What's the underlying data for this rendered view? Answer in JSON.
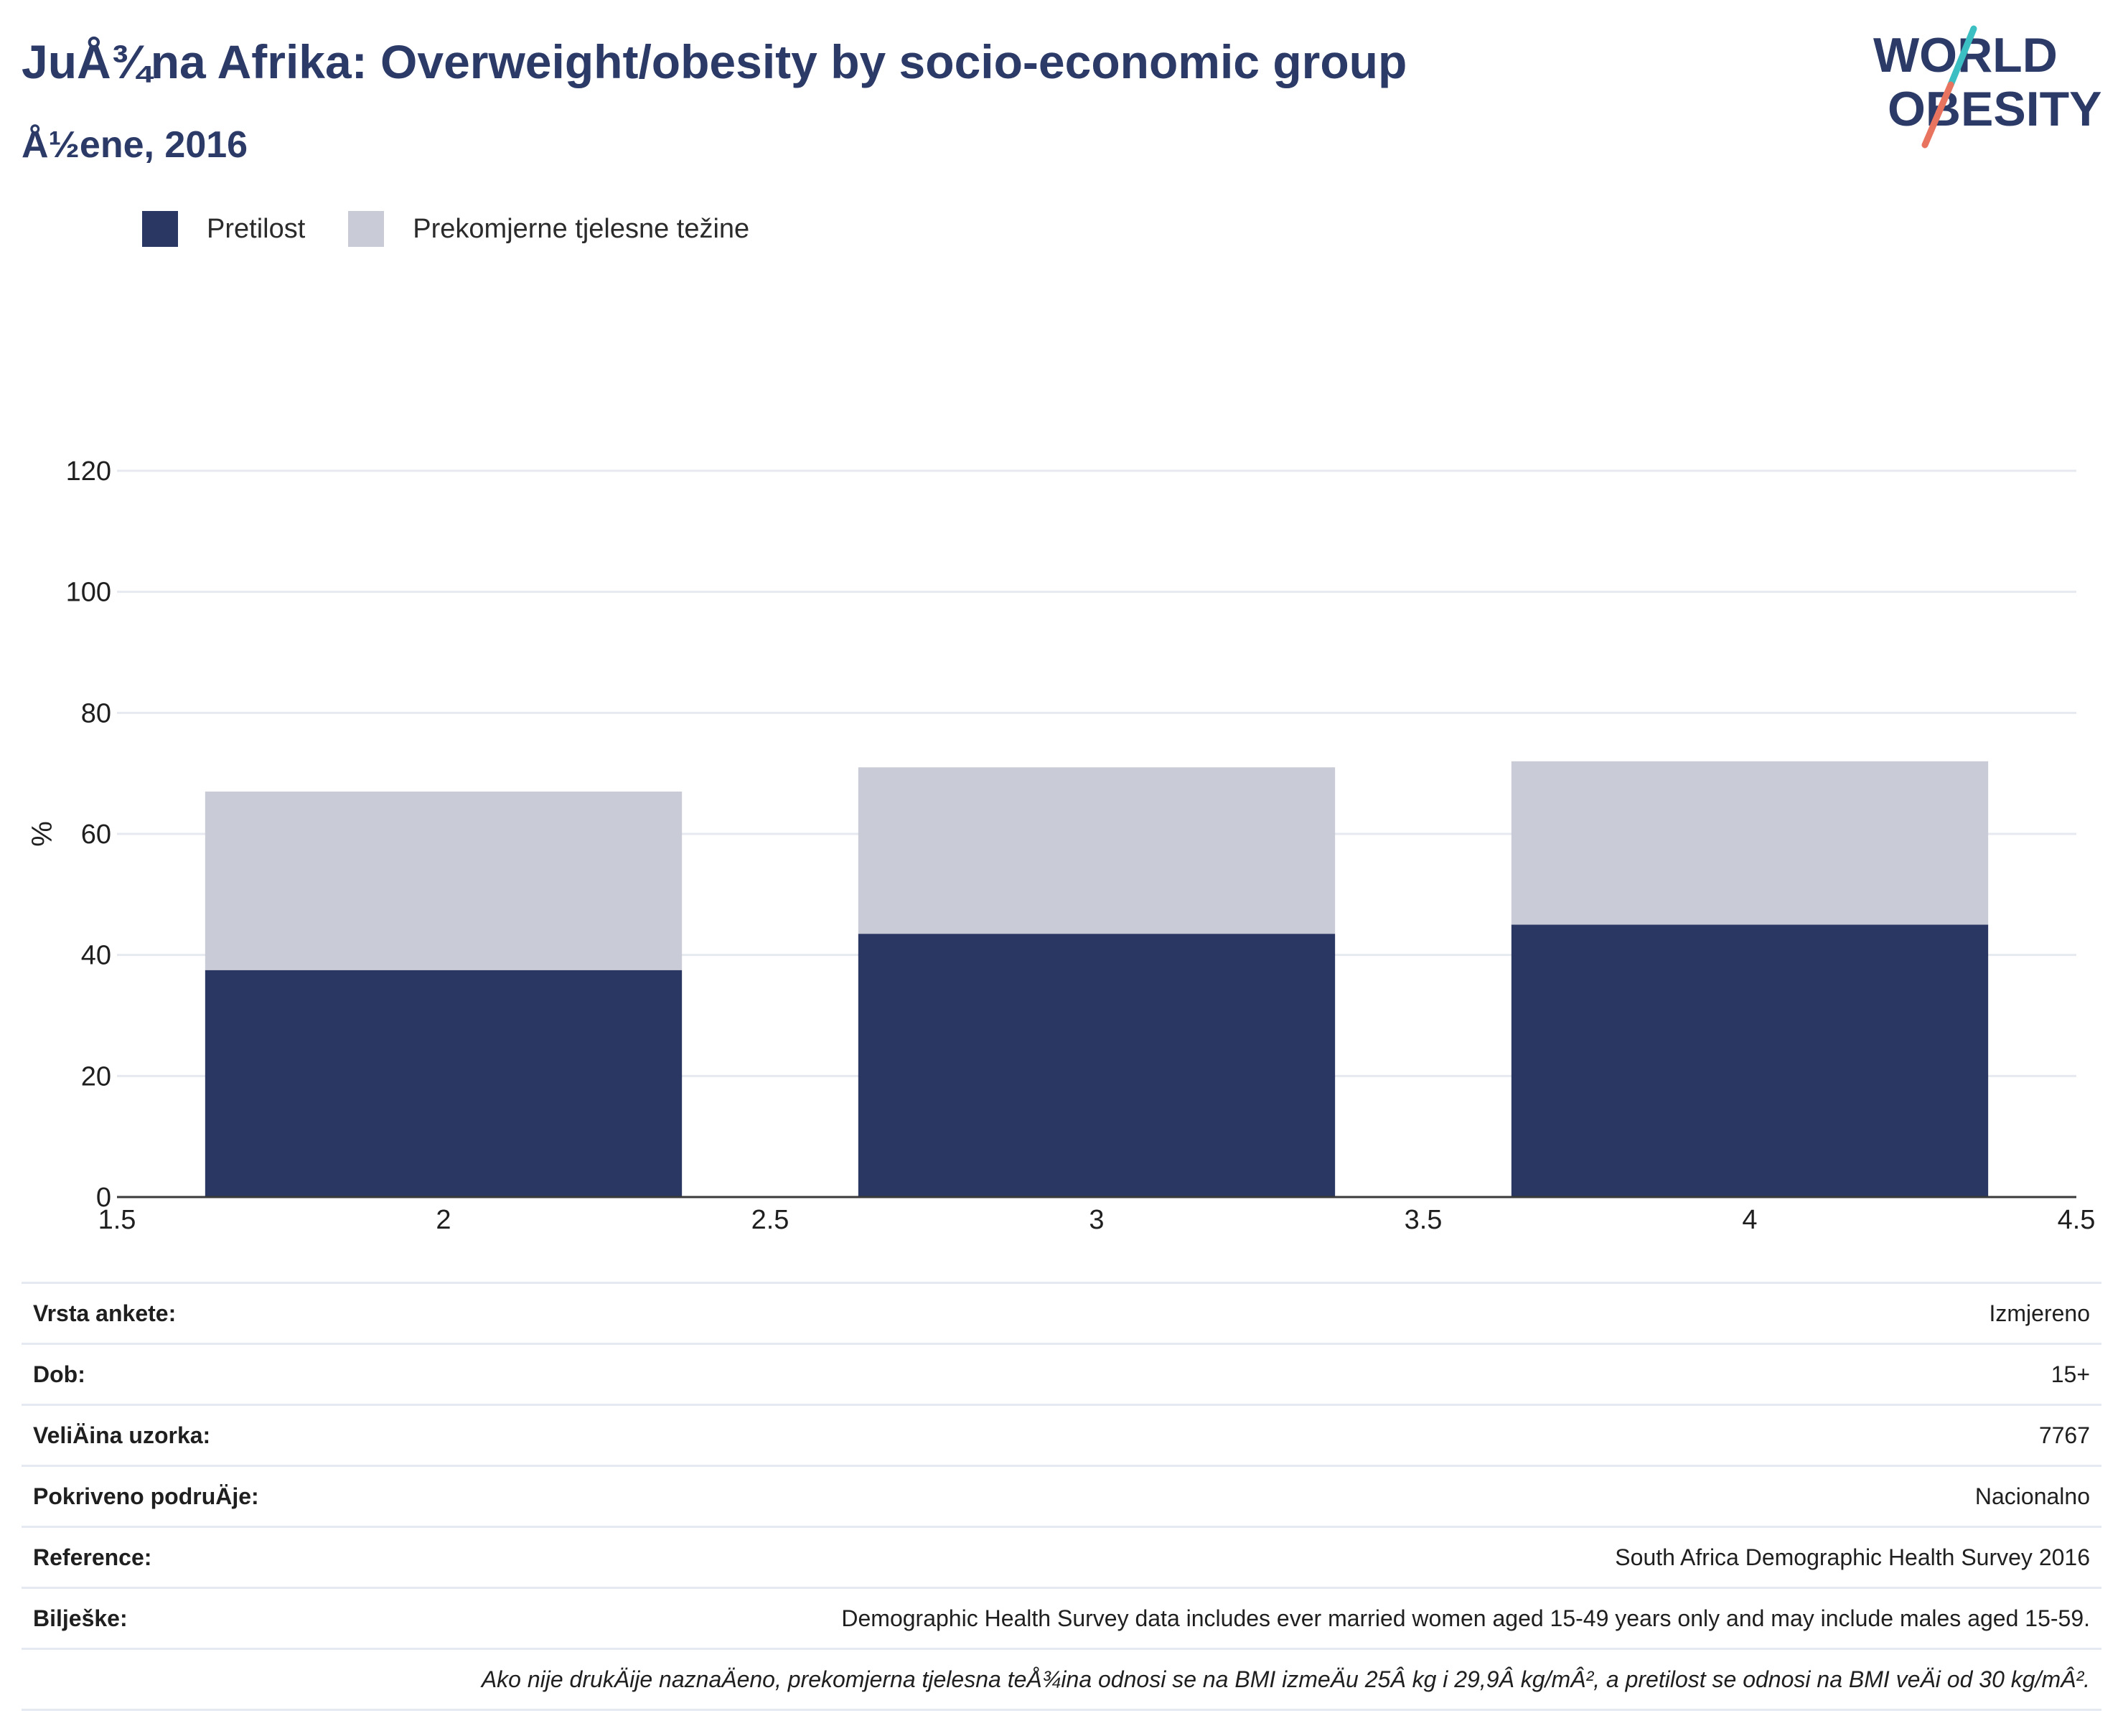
{
  "header": {
    "title": "JuÅ¾na Afrika: Overweight/obesity by socio-economic group",
    "subtitle": "Å½ene, 2016"
  },
  "logo": {
    "line1": "WORLD",
    "line2": "OBESITY",
    "slash_teal": "#3bbfc2",
    "slash_coral": "#e8735f"
  },
  "legend": {
    "items": [
      {
        "label": "Pretilost",
        "color": "#2b3763"
      },
      {
        "label": "Prekomjerne tjelesne težine",
        "color": "#c9cbd6"
      }
    ]
  },
  "chart_data": {
    "type": "bar",
    "stacked": true,
    "x": [
      2,
      3,
      4
    ],
    "series": [
      {
        "name": "Pretilost",
        "values": [
          37.5,
          43.5,
          45
        ],
        "color": "#2b3763"
      },
      {
        "name": "Prekomjerne tjelesne težine",
        "values": [
          29.5,
          27.5,
          27
        ],
        "color": "#c9cbd6"
      }
    ],
    "xlim": [
      1.5,
      4.5
    ],
    "ylim": [
      0,
      120
    ],
    "xticks": [
      "1.5",
      "2",
      "2.5",
      "3",
      "3.5",
      "4",
      "4.5"
    ],
    "yticks": [
      "0",
      "20",
      "40",
      "60",
      "80",
      "100",
      "120"
    ],
    "ylabel": "%",
    "xlabel": "",
    "grid": true,
    "legend_position": "top-left"
  },
  "info": {
    "rows": [
      {
        "label": "Vrsta ankete:",
        "value": "Izmjereno"
      },
      {
        "label": "Dob:",
        "value": "15+"
      },
      {
        "label": "VeliÄina uzorka:",
        "value": "7767"
      },
      {
        "label": "Pokriveno podruÄje:",
        "value": "Nacionalno"
      },
      {
        "label": "Reference:",
        "value": "South Africa Demographic Health Survey 2016"
      },
      {
        "label": "Bilješke:",
        "value": "Demographic Health Survey data includes ever married women aged 15-49 years only and may include males aged 15-59."
      }
    ],
    "note": "Ako nije drukÄije naznaÄeno, prekomjerna tjelesna teÅ¾ina odnosi se na BMI izmeÄu 25Â kg i 29,9Â kg/mÂ², a pretilost se odnosi na BMI veÄi od 30 kg/mÂ²."
  }
}
